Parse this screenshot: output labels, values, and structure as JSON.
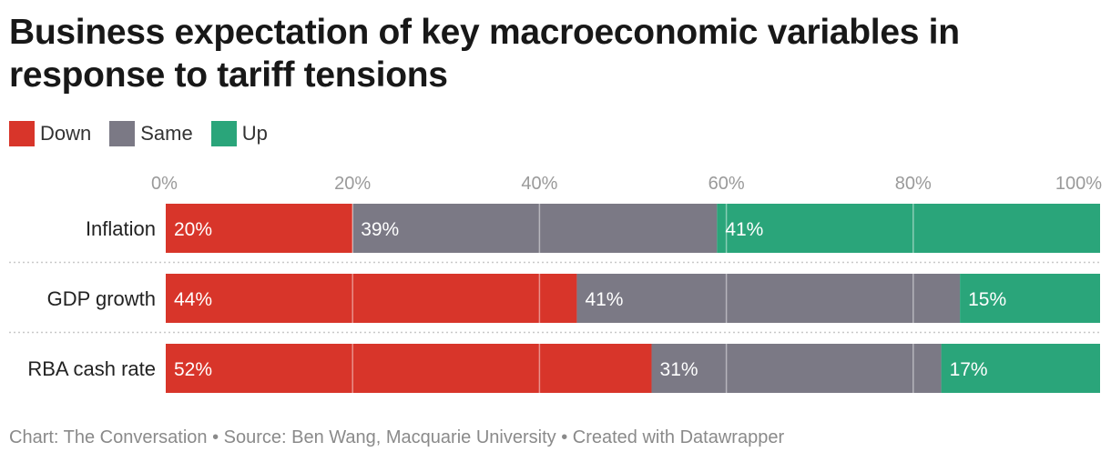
{
  "title": "Business expectation of key macroeconomic variables in response to tariff tensions",
  "colors": {
    "Down": "#d8352a",
    "Same": "#7b7985",
    "Up": "#2aa57a"
  },
  "legend": [
    {
      "label": "Down",
      "color": "#d8352a"
    },
    {
      "label": "Same",
      "color": "#7b7985"
    },
    {
      "label": "Up",
      "color": "#2aa57a"
    }
  ],
  "footer": {
    "chart_credit": "Chart: The Conversation",
    "source": "Source: Ben Wang, Macquarie University",
    "created": "Created with Datawrapper"
  },
  "chart_data": {
    "type": "bar",
    "orientation": "horizontal",
    "stacked": true,
    "categories": [
      "Inflation",
      "GDP growth",
      "RBA cash rate"
    ],
    "series": [
      {
        "name": "Down",
        "values": [
          20,
          44,
          52
        ],
        "color": "#d8352a"
      },
      {
        "name": "Same",
        "values": [
          39,
          41,
          31
        ],
        "color": "#7b7985"
      },
      {
        "name": "Up",
        "values": [
          41,
          15,
          17
        ],
        "color": "#2aa57a"
      }
    ],
    "data_labels": [
      [
        "20%",
        "39%",
        "41%"
      ],
      [
        "44%",
        "41%",
        "15%"
      ],
      [
        "52%",
        "31%",
        "17%"
      ]
    ],
    "xlim": [
      0,
      100
    ],
    "xticks": [
      0,
      20,
      40,
      60,
      80,
      100
    ],
    "xtick_labels": [
      "0%",
      "20%",
      "40%",
      "60%",
      "80%",
      "100%"
    ],
    "grid": true,
    "legend_position": "top-left"
  }
}
